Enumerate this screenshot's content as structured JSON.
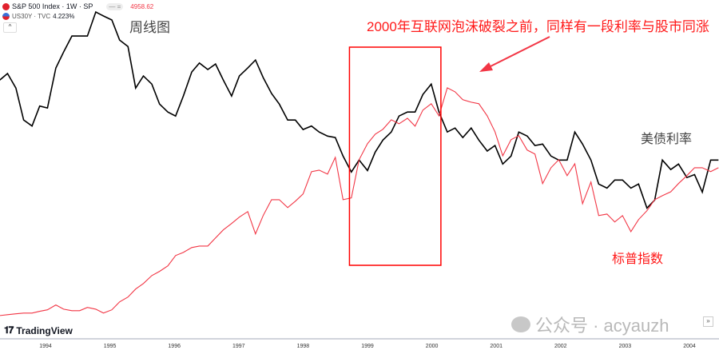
{
  "legend": {
    "series1": {
      "label": "S&P 500 Index · 1W · SP",
      "icon": "sp500-logo-icon",
      "price": "4958.62",
      "color": "#f23645"
    },
    "series2": {
      "label": "US30Y · TVC",
      "icon": "us-flag-icon",
      "value": "4.223%",
      "color": "#000000"
    },
    "collapse_button": "^"
  },
  "annotations": {
    "weekly": "周线图",
    "headline": "2000年互联网泡沫破裂之前，同样有一段利率与股市同涨",
    "yield_label": "美债利率",
    "spx_label": "标普指数",
    "box_color": "#ff0000"
  },
  "branding": {
    "logo": "TradingView",
    "watermark": "公众号 · acyauzh",
    "expand": "»"
  },
  "chart_data": {
    "type": "line",
    "x_ticks": [
      "1994",
      "1995",
      "1996",
      "1997",
      "1998",
      "1999",
      "2000",
      "2001",
      "2002",
      "2003",
      "2004"
    ],
    "grid": false,
    "dates": [
      1993.29,
      1993.41,
      1993.54,
      1993.66,
      1993.79,
      1993.91,
      1994.03,
      1994.16,
      1994.28,
      1994.41,
      1994.53,
      1994.65,
      1994.78,
      1994.9,
      1995.03,
      1995.15,
      1995.28,
      1995.4,
      1995.52,
      1995.65,
      1995.77,
      1995.9,
      1996.02,
      1996.14,
      1996.27,
      1996.39,
      1996.52,
      1996.64,
      1996.76,
      1996.89,
      1997.01,
      1997.14,
      1997.26,
      1997.38,
      1997.51,
      1997.63,
      1997.76,
      1997.88,
      1998.0,
      1998.13,
      1998.25,
      1998.38,
      1998.5,
      1998.62,
      1998.75,
      1998.87,
      1999.0,
      1999.12,
      1999.24,
      1999.37,
      1999.49,
      1999.62,
      1999.74,
      1999.86,
      1999.99,
      2000.11,
      2000.24,
      2000.36,
      2000.48,
      2000.61,
      2000.73,
      2000.86,
      2000.98,
      2001.1,
      2001.23,
      2001.35,
      2001.48,
      2001.6,
      2001.72,
      2001.85,
      2001.97,
      2002.1,
      2002.22,
      2002.34,
      2002.47,
      2002.59,
      2002.72,
      2002.84,
      2002.96,
      2003.09,
      2003.21,
      2003.34,
      2003.46,
      2003.58,
      2003.71,
      2003.83,
      2003.96,
      2004.08,
      2004.2,
      2004.33,
      2004.45
    ],
    "series": [
      {
        "name": "US30Y",
        "color": "#000000",
        "ylim": [
          1.68,
          8.39
        ],
        "values": [
          6.79,
          6.92,
          6.63,
          5.99,
          5.87,
          6.27,
          6.23,
          7.03,
          7.35,
          7.67,
          7.67,
          7.67,
          8.15,
          8.07,
          7.99,
          7.59,
          7.46,
          6.63,
          6.87,
          6.71,
          6.31,
          6.15,
          6.07,
          6.47,
          6.95,
          7.13,
          7.0,
          7.11,
          6.79,
          6.47,
          6.87,
          7.03,
          7.19,
          6.84,
          6.52,
          6.31,
          5.99,
          5.99,
          5.8,
          5.87,
          5.75,
          5.67,
          5.64,
          5.27,
          4.95,
          5.19,
          4.98,
          5.35,
          5.59,
          5.75,
          6.07,
          6.15,
          6.15,
          6.5,
          6.71,
          6.15,
          5.75,
          5.83,
          5.64,
          5.83,
          5.59,
          5.37,
          5.48,
          5.11,
          5.27,
          5.75,
          5.67,
          5.48,
          5.51,
          5.27,
          5.19,
          5.19,
          5.75,
          5.51,
          5.19,
          4.71,
          4.63,
          4.79,
          4.79,
          4.63,
          4.71,
          4.23,
          4.39,
          5.19,
          5.0,
          5.11,
          4.84,
          4.9,
          4.55,
          5.19,
          5.19
        ]
      },
      {
        "name": "S&P 500 Index",
        "color": "#f23645",
        "ylim": [
          359,
          1880
        ],
        "values": [
          450,
          454,
          458,
          461,
          461,
          469,
          476,
          498,
          479,
          472,
          472,
          487,
          479,
          461,
          476,
          512,
          534,
          570,
          595,
          631,
          650,
          675,
          722,
          736,
          758,
          765,
          765,
          802,
          838,
          867,
          896,
          921,
          820,
          903,
          975,
          975,
          939,
          968,
          1001,
          1102,
          1109,
          1091,
          1167,
          975,
          983,
          1156,
          1229,
          1272,
          1294,
          1337,
          1319,
          1344,
          1308,
          1381,
          1410,
          1355,
          1482,
          1464,
          1428,
          1417,
          1410,
          1355,
          1283,
          1174,
          1247,
          1265,
          1200,
          1182,
          1048,
          1120,
          1156,
          1084,
          1138,
          957,
          1055,
          903,
          910,
          874,
          903,
          830,
          885,
          925,
          975,
          993,
          1011,
          1048,
          1084,
          1120,
          1120,
          1102,
          1120
        ]
      }
    ],
    "highlight_range": [
      1998.72,
      2000.14
    ]
  }
}
